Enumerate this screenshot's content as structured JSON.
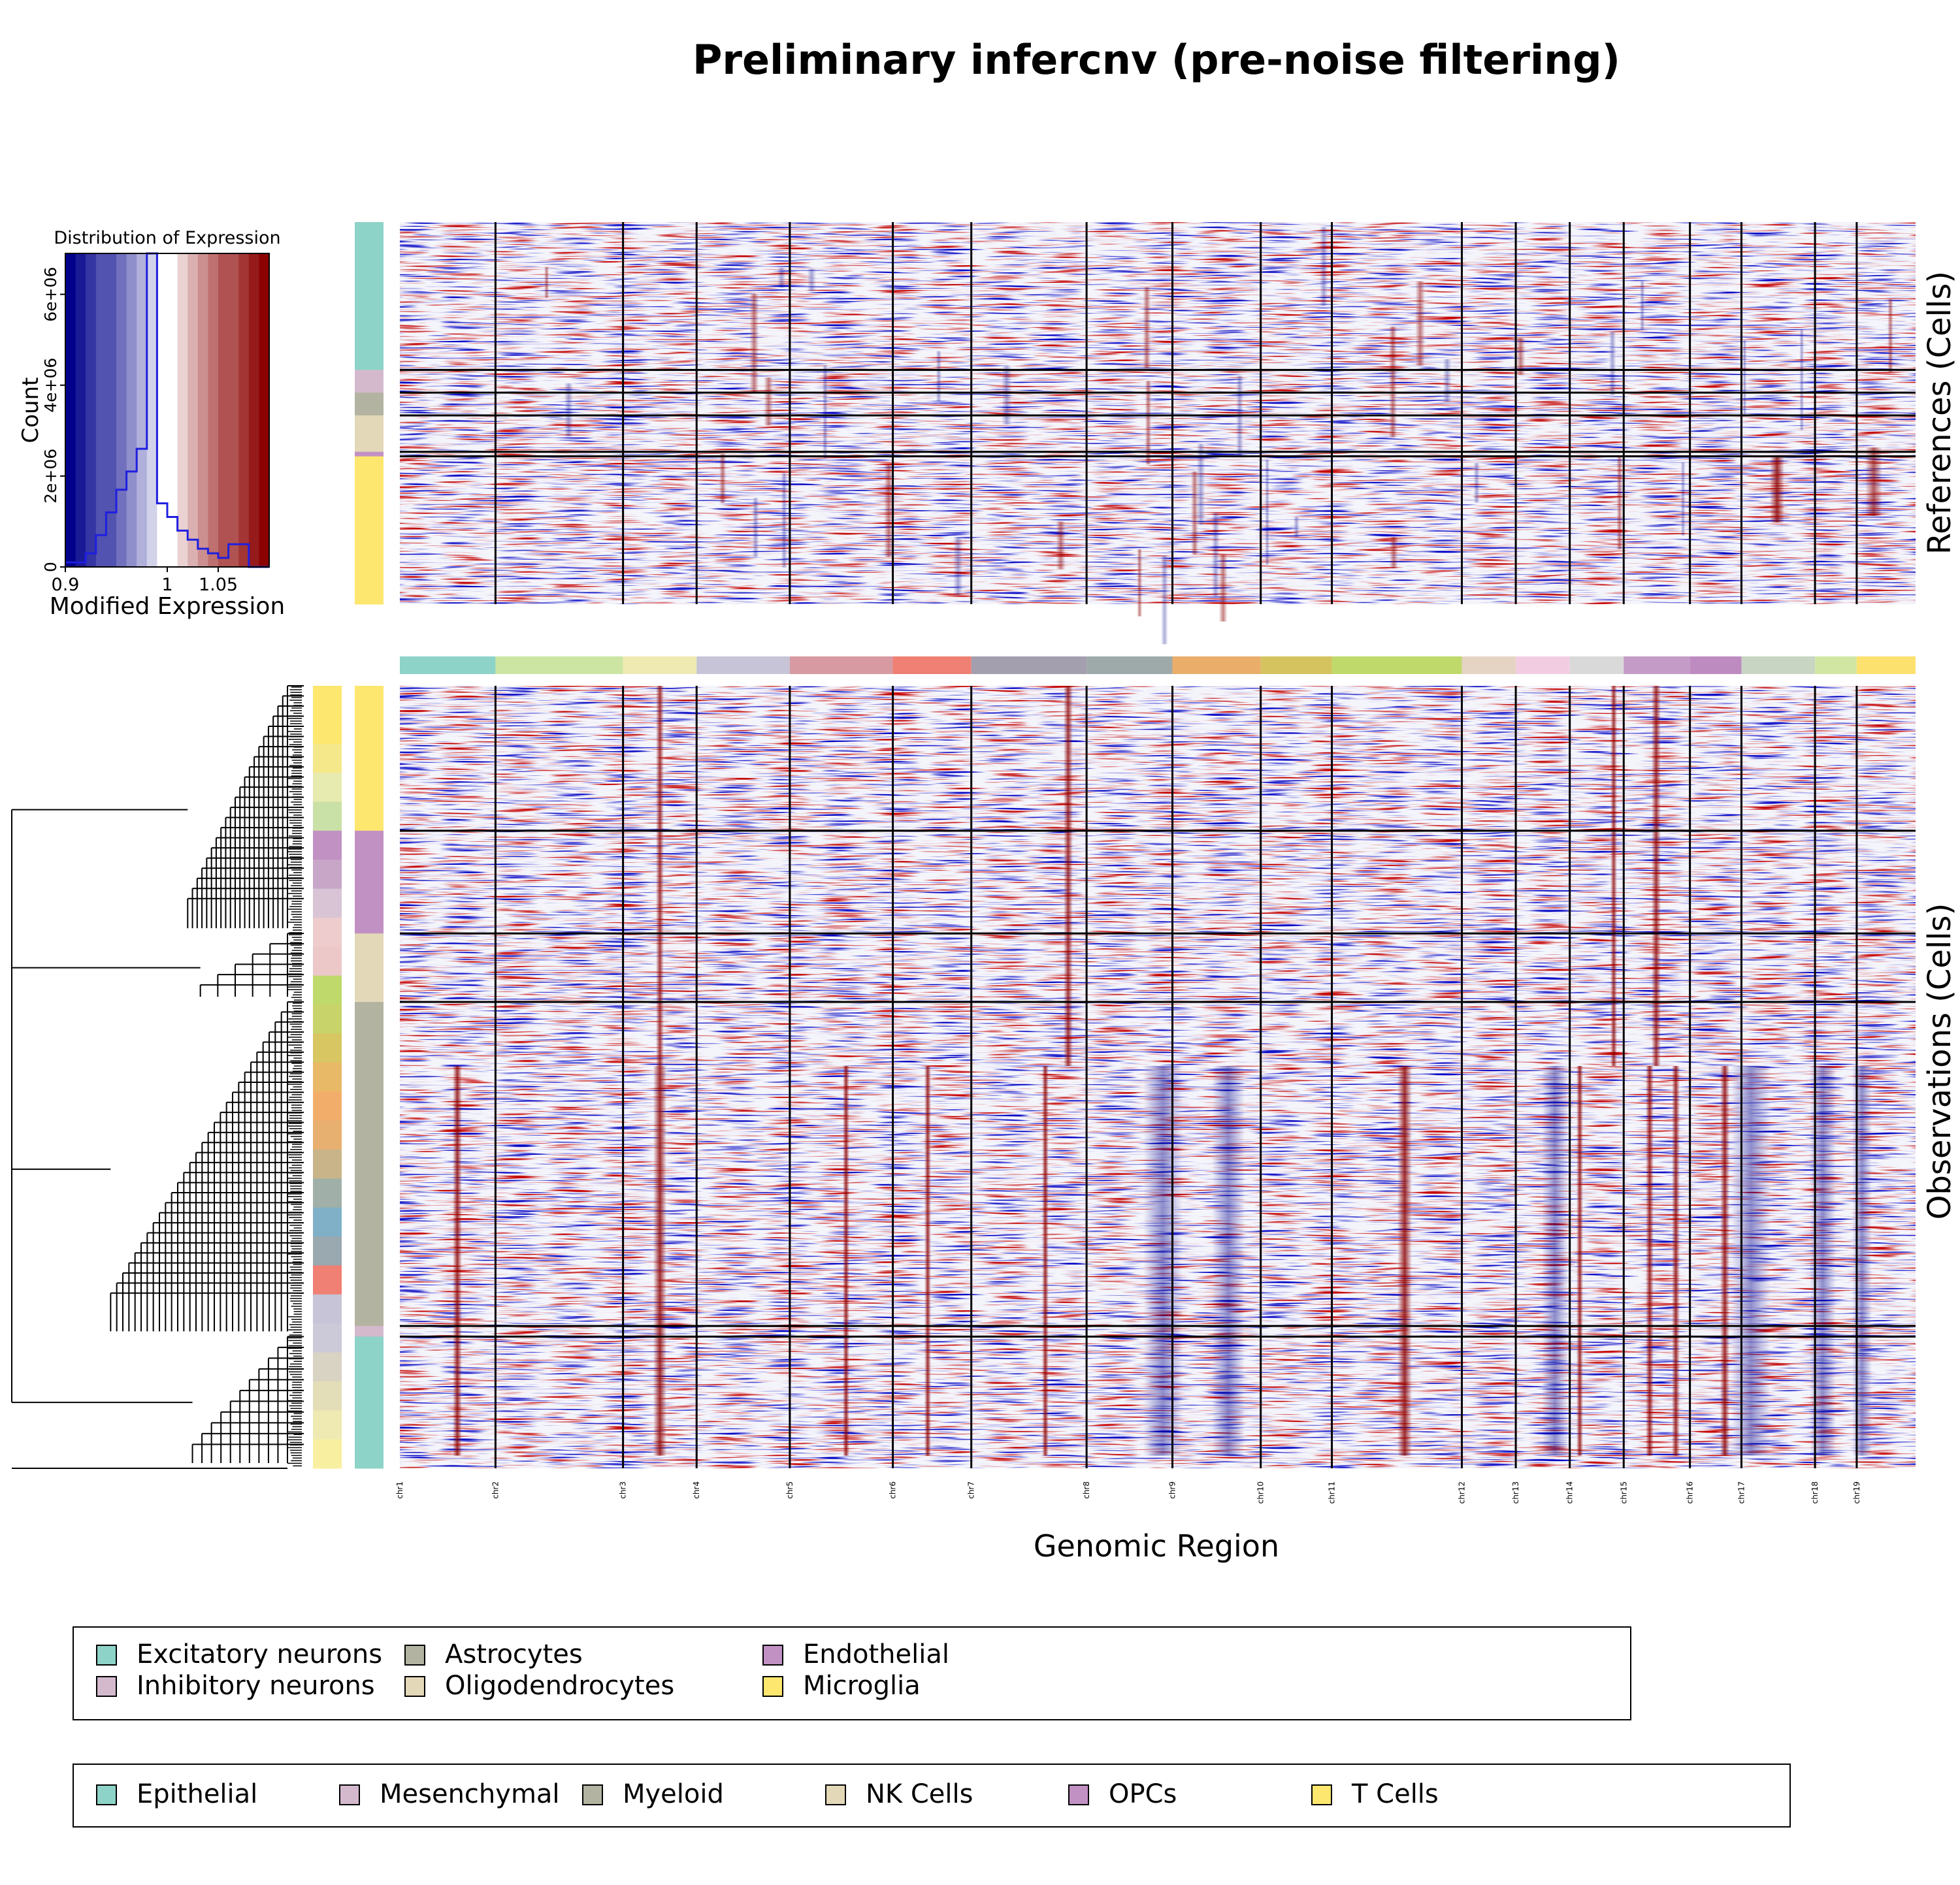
{
  "title": "Preliminary infercnv (pre-noise filtering)",
  "references_label": "References (Cells)",
  "observations_label": "Observations (Cells)",
  "genomic_region_label": "Genomic Region",
  "histogram": {
    "title": "Distribution of Expression",
    "xlabel": "Modified Expression",
    "ylabel": "Count",
    "x_ticks": [
      "0.9",
      "1",
      "1.05"
    ],
    "y_ticks": [
      "0",
      "2e+06",
      "4e+06",
      "6e+06"
    ]
  },
  "chart_data": [
    {
      "type": "bar",
      "title": "Distribution of Expression",
      "xlabel": "Modified Expression",
      "ylabel": "Count",
      "xlim": [
        0.9,
        1.1
      ],
      "ylim": [
        0,
        6900000
      ],
      "bin_edges": [
        0.9,
        0.91,
        0.92,
        0.93,
        0.94,
        0.95,
        0.96,
        0.97,
        0.98,
        0.99,
        1.0,
        1.01,
        1.02,
        1.03,
        1.04,
        1.05,
        1.06,
        1.07,
        1.08,
        1.09,
        1.1
      ],
      "values": [
        100000,
        100000,
        300000,
        700000,
        1200000,
        1700000,
        2100000,
        2600000,
        6900000,
        1400000,
        1100000,
        800000,
        600000,
        400000,
        300000,
        200000,
        500000,
        500000,
        0,
        0
      ]
    },
    {
      "type": "heatmap",
      "x_categories": [
        "chr1",
        "chr2",
        "chr3",
        "chr4",
        "chr5",
        "chr6",
        "chr7",
        "chr8",
        "chr9",
        "chr10",
        "chr11",
        "chr12",
        "chr13",
        "chr14",
        "chr15",
        "chr16",
        "chr17",
        "chr18",
        "chr19"
      ],
      "chromosome_colors": [
        "#8dd3c7",
        "#cce5a3",
        "#eeeab2",
        "#c6c4d6",
        "#d79aa2",
        "#ef8073",
        "#a49fae",
        "#9eaaa9",
        "#eaad6a",
        "#d4c35f",
        "#bfd96b",
        "#e5d4c4",
        "#f2cde1",
        "#d9d9d9",
        "#c49ac6",
        "#be8bc1",
        "#c8d5c3",
        "#d2e6a4",
        "#fde16e"
      ],
      "chromosome_widths": [
        78,
        104,
        60,
        76,
        84,
        64,
        94,
        70,
        72,
        58,
        106,
        44,
        44,
        44,
        54,
        42,
        60,
        34,
        48
      ],
      "references": {
        "groups": [
          "Excitatory neurons",
          "Inhibitory neurons",
          "Astrocytes",
          "Oligodendrocytes",
          "Endothelial",
          "Microglia"
        ],
        "cell_counts": [
          130,
          20,
          20,
          32,
          4,
          130
        ]
      },
      "observations": {
        "groups": [
          "T Cells",
          "OPCs",
          "NK Cells",
          "Myeloid",
          "Mesenchymal",
          "Epithelial"
        ],
        "cell_counts": [
          110,
          78,
          52,
          246,
          8,
          100
        ]
      },
      "color_scale": {
        "min": 0.9,
        "center": 1.0,
        "max": 1.1,
        "low_color": "#00008b",
        "mid_color": "#ffffff",
        "high_color": "#8b0000"
      }
    }
  ],
  "reference_legend": {
    "items": [
      {
        "label": "Excitatory neurons",
        "color": "#8dd3c7"
      },
      {
        "label": "Inhibitory neurons",
        "color": "#d4b9cd"
      },
      {
        "label": "Astrocytes",
        "color": "#b3b3a1"
      },
      {
        "label": "Oligodendrocytes",
        "color": "#e3d8b8"
      },
      {
        "label": "Endothelial",
        "color": "#c291c4"
      },
      {
        "label": "Microglia",
        "color": "#fde76e"
      }
    ]
  },
  "observation_legend": {
    "items": [
      {
        "label": "Epithelial",
        "color": "#8dd3c7"
      },
      {
        "label": "Mesenchymal",
        "color": "#d4b9cd"
      },
      {
        "label": "Myeloid",
        "color": "#b3b3a1"
      },
      {
        "label": "NK Cells",
        "color": "#e3d8b8"
      },
      {
        "label": "OPCs",
        "color": "#c291c4"
      },
      {
        "label": "T Cells",
        "color": "#fde76e"
      }
    ]
  }
}
